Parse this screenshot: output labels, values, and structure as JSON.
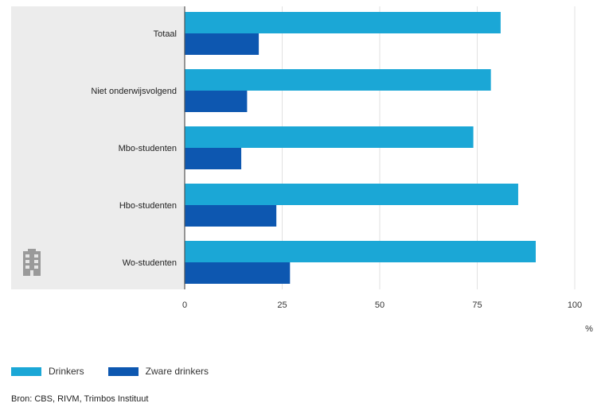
{
  "chart_data": {
    "type": "bar",
    "orientation": "horizontal",
    "categories": [
      "Totaal",
      "Niet onderwijsvolgend",
      "Mbo-studenten",
      "Hbo-studenten",
      "Wo-studenten"
    ],
    "series": [
      {
        "name": "Drinkers",
        "color": "#1ba7d6",
        "values": [
          81,
          78.5,
          74,
          85.5,
          90
        ]
      },
      {
        "name": "Zware drinkers",
        "color": "#0d57b0",
        "values": [
          19,
          16,
          14.5,
          23.5,
          27
        ]
      }
    ],
    "xlim": [
      0,
      100
    ],
    "xticks": [
      0,
      25,
      50,
      75,
      100
    ],
    "xunit": "%",
    "grid": true,
    "legend": "bottom-left"
  },
  "colors": {
    "label_panel": "#ececec",
    "axis": "#555555",
    "grid": "#e2e2e2"
  },
  "icon": "building-icon",
  "source": "Bron: CBS, RIVM, Trimbos Instituut"
}
